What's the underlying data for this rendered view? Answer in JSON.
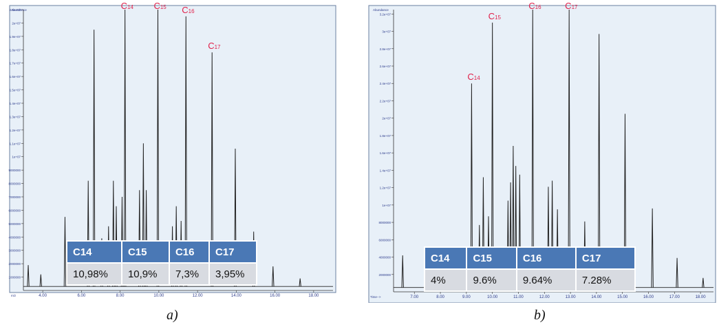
{
  "colors": {
    "plot_bg": "#e8f0f8",
    "trace": "#222222",
    "peak_label": "#e0204a",
    "table_header": "#4a78b5",
    "table_cell": "#d8dbe1",
    "frame": "#6a7fa0"
  },
  "chart_data": [
    {
      "type": "line",
      "caption": "a)",
      "corner_labels": [
        "Abundance",
        "m/z"
      ],
      "xlim": [
        3.0,
        19.0
      ],
      "ylim": [
        0,
        21000000
      ],
      "xticks": [
        "4.00",
        "6.00",
        "8.00",
        "10.00",
        "12.00",
        "14.00",
        "16.00",
        "18.00"
      ],
      "xtick_values": [
        4,
        6,
        8,
        10,
        12,
        14,
        16,
        18
      ],
      "yticks": [
        "1000000",
        "2000000",
        "3000000",
        "4000000",
        "5000000",
        "6000000",
        "7000000",
        "8000000",
        "9000000",
        "1e+07",
        "1.1e+07",
        "1.2e+07",
        "1.3e+07",
        "1.4e+07",
        "1.5e+07",
        "1.6e+07",
        "1.7e+07",
        "1.8e+07",
        "1.9e+07",
        "2e+07",
        "2.1e+07"
      ],
      "ytick_values": [
        1000000,
        2000000,
        3000000,
        4000000,
        5000000,
        6000000,
        7000000,
        8000000,
        9000000,
        10000000,
        11000000,
        12000000,
        13000000,
        14000000,
        15000000,
        16000000,
        17000000,
        18000000,
        19000000,
        20000000,
        21000000
      ],
      "baseline": 300000,
      "peaks": [
        {
          "x": 3.25,
          "y": 1900000
        },
        {
          "x": 3.9,
          "y": 1200000
        },
        {
          "x": 5.15,
          "y": 5500000
        },
        {
          "x": 6.35,
          "y": 8200000
        },
        {
          "x": 6.65,
          "y": 19500000
        },
        {
          "x": 7.05,
          "y": 3900000
        },
        {
          "x": 7.4,
          "y": 4800000
        },
        {
          "x": 7.65,
          "y": 8200000
        },
        {
          "x": 7.8,
          "y": 6300000
        },
        {
          "x": 8.1,
          "y": 7000000
        },
        {
          "x": 8.25,
          "y": 21000000
        },
        {
          "x": 9.0,
          "y": 7500000
        },
        {
          "x": 9.2,
          "y": 11000000
        },
        {
          "x": 9.35,
          "y": 7500000
        },
        {
          "x": 9.95,
          "y": 21000000
        },
        {
          "x": 10.7,
          "y": 4800000
        },
        {
          "x": 10.9,
          "y": 6300000
        },
        {
          "x": 11.15,
          "y": 5200000
        },
        {
          "x": 11.4,
          "y": 20500000
        },
        {
          "x": 12.75,
          "y": 17800000
        },
        {
          "x": 13.95,
          "y": 10600000
        },
        {
          "x": 14.9,
          "y": 4400000
        },
        {
          "x": 15.9,
          "y": 1800000
        },
        {
          "x": 17.3,
          "y": 900000
        }
      ],
      "peak_labels": [
        {
          "text": "C",
          "sub": "14",
          "x": 8.25,
          "y": 21000000
        },
        {
          "text": "C",
          "sub": "15",
          "x": 9.95,
          "y": 21000000
        },
        {
          "text": "C",
          "sub": "16",
          "x": 11.4,
          "y": 20500000
        },
        {
          "text": "C",
          "sub": "17",
          "x": 12.75,
          "y": 17800000
        }
      ],
      "table": {
        "headers": [
          "C14",
          "C15",
          "C16",
          "C17"
        ],
        "values": [
          "10,98%",
          "10,9%",
          "7,3%",
          "3,95%"
        ]
      }
    },
    {
      "type": "line",
      "caption": "b)",
      "corner_labels": [
        "Abundance",
        "Time-->"
      ],
      "xlim": [
        6.2,
        18.5
      ],
      "ylim": [
        0,
        32500000
      ],
      "xticks": [
        "7.00",
        "8.00",
        "9.00",
        "10.00",
        "11.00",
        "12.00",
        "13.00",
        "14.00",
        "15.00",
        "16.00",
        "17.00",
        "18.00"
      ],
      "xtick_values": [
        7,
        8,
        9,
        10,
        11,
        12,
        13,
        14,
        15,
        16,
        17,
        18
      ],
      "yticks": [
        "2000000",
        "4000000",
        "6000000",
        "8000000",
        "1e+07",
        "1.2e+07",
        "1.4e+07",
        "1.6e+07",
        "1.8e+07",
        "2e+07",
        "2.2e+07",
        "2.4e+07",
        "2.6e+07",
        "2.8e+07",
        "3e+07",
        "3.2e+07"
      ],
      "ytick_values": [
        2000000,
        4000000,
        6000000,
        8000000,
        10000000,
        12000000,
        14000000,
        16000000,
        18000000,
        20000000,
        22000000,
        24000000,
        26000000,
        28000000,
        30000000,
        32000000
      ],
      "baseline": 500000,
      "peaks": [
        {
          "x": 6.55,
          "y": 4200000
        },
        {
          "x": 8.2,
          "y": 2000000
        },
        {
          "x": 9.2,
          "y": 24000000
        },
        {
          "x": 9.5,
          "y": 7700000
        },
        {
          "x": 9.65,
          "y": 13200000
        },
        {
          "x": 9.85,
          "y": 8700000
        },
        {
          "x": 10.0,
          "y": 31000000
        },
        {
          "x": 10.6,
          "y": 10500000
        },
        {
          "x": 10.7,
          "y": 12600000
        },
        {
          "x": 10.8,
          "y": 16800000
        },
        {
          "x": 10.9,
          "y": 14500000
        },
        {
          "x": 11.05,
          "y": 13500000
        },
        {
          "x": 11.55,
          "y": 32500000
        },
        {
          "x": 12.15,
          "y": 12100000
        },
        {
          "x": 12.3,
          "y": 12800000
        },
        {
          "x": 12.5,
          "y": 9500000
        },
        {
          "x": 12.95,
          "y": 32500000
        },
        {
          "x": 13.55,
          "y": 8100000
        },
        {
          "x": 14.1,
          "y": 29700000
        },
        {
          "x": 15.1,
          "y": 20500000
        },
        {
          "x": 16.15,
          "y": 9600000
        },
        {
          "x": 17.1,
          "y": 3900000
        },
        {
          "x": 18.1,
          "y": 1600000
        }
      ],
      "peak_labels": [
        {
          "text": "C",
          "sub": "14",
          "x": 9.2,
          "y": 24000000
        },
        {
          "text": "C",
          "sub": "15",
          "x": 10.0,
          "y": 31000000
        },
        {
          "text": "C",
          "sub": "16",
          "x": 11.55,
          "y": 32500000
        },
        {
          "text": "C",
          "sub": "17",
          "x": 12.95,
          "y": 32500000
        }
      ],
      "table": {
        "headers": [
          "C14",
          "C15",
          "C16",
          "C17"
        ],
        "values": [
          "4%",
          "9.6%",
          "9.64%",
          "7.28%"
        ]
      }
    }
  ]
}
